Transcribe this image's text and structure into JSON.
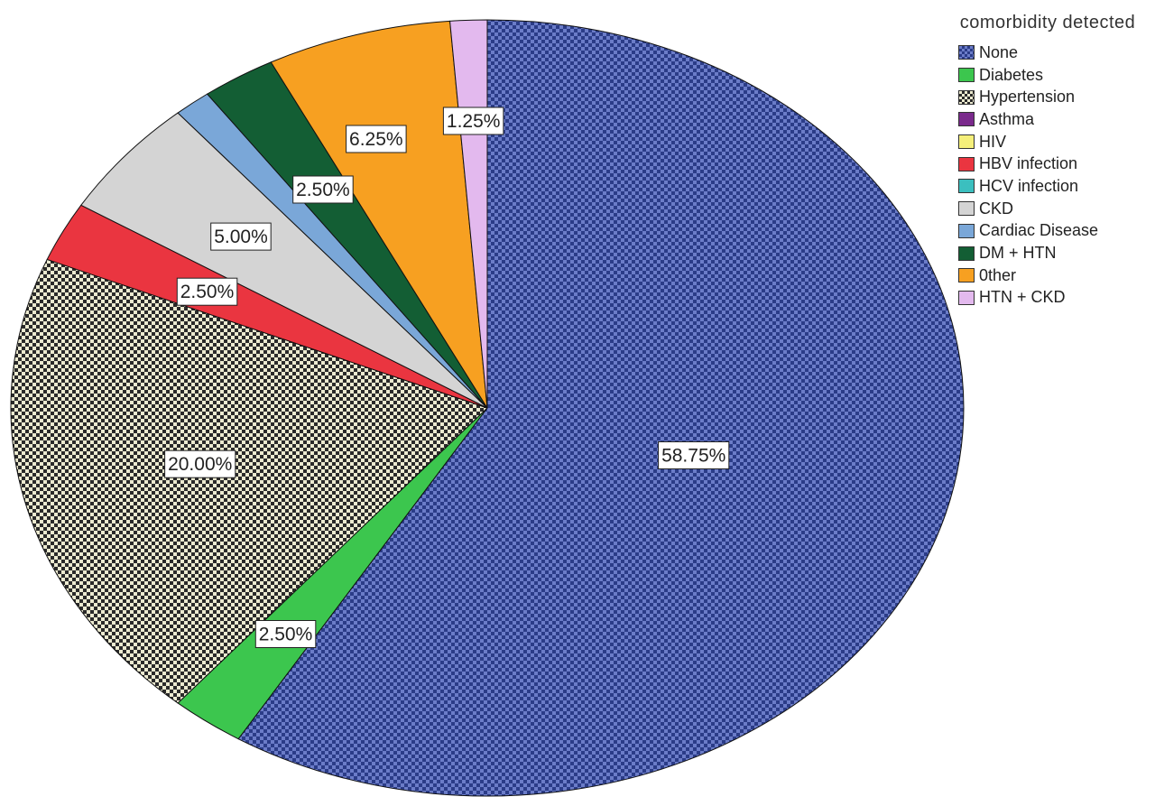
{
  "chart_data": {
    "type": "pie",
    "legend_title": "comorbidity detected",
    "legend_position": "top-right",
    "slices": [
      {
        "name": "None",
        "value": 58.75,
        "label": "58.75%",
        "color": "#3b4fa0",
        "pattern": "checker"
      },
      {
        "name": "Diabetes",
        "value": 2.5,
        "label": "2.50%",
        "color": "#3cc64e",
        "pattern": "solid"
      },
      {
        "name": "Hypertension",
        "value": 20.0,
        "label": "20.00%",
        "color": "#e6e4b0",
        "pattern": "checker-dark"
      },
      {
        "name": "Asthma",
        "value": 0,
        "label": "",
        "color": "#7a2a8c",
        "pattern": "solid"
      },
      {
        "name": "HIV",
        "value": 0,
        "label": "",
        "color": "#f5ef7a",
        "pattern": "solid"
      },
      {
        "name": "HBV infection",
        "value": 2.5,
        "label": "2.50%",
        "color": "#ea3540",
        "pattern": "solid"
      },
      {
        "name": "HCV infection",
        "value": 0,
        "label": "",
        "color": "#3bbfbf",
        "pattern": "solid"
      },
      {
        "name": "CKD",
        "value": 5.0,
        "label": "5.00%",
        "color": "#d4d4d4",
        "pattern": "solid"
      },
      {
        "name": "Cardiac Disease",
        "value": 1.25,
        "label": "",
        "color": "#7aa7d8",
        "pattern": "solid"
      },
      {
        "name": "DM + HTN",
        "value": 2.5,
        "label": "2.50%",
        "color": "#135e34",
        "pattern": "solid"
      },
      {
        "name": "0ther",
        "value": 6.25,
        "label": "6.25%",
        "color": "#f7a021",
        "pattern": "solid"
      },
      {
        "name": "HTN + CKD",
        "value": 1.25,
        "label": "1.25%",
        "color": "#e3b9ee",
        "pattern": "solid"
      }
    ]
  }
}
